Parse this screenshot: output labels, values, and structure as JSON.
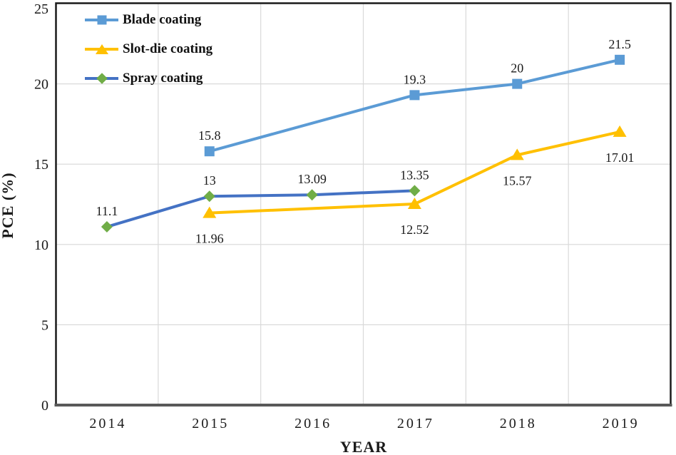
{
  "chart_data": {
    "type": "line",
    "title": "",
    "xlabel": "YEAR",
    "ylabel": "PCE (%)",
    "categories": [
      "2014",
      "2015",
      "2016",
      "2017",
      "2018",
      "2019"
    ],
    "ylim": [
      0,
      25
    ],
    "yticks": [
      0,
      5,
      10,
      15,
      20,
      25
    ],
    "grid": {
      "horizontal": true,
      "vertical_between_categories": true
    },
    "legend_position": "top-left-inside",
    "colors": {
      "gridline": "#D9D9D9",
      "frame": "#1a1a1a",
      "bottom_axis": "#595959",
      "text": "#1a1a1a"
    },
    "series": [
      {
        "name": "Blade coating",
        "color": "#5B9BD5",
        "marker": "square",
        "marker_color": "#5B9BD5",
        "label_position": "above",
        "points": [
          {
            "x": "2015",
            "y": 15.8,
            "label": "15.8"
          },
          {
            "x": "2017",
            "y": 19.3,
            "label": "19.3"
          },
          {
            "x": "2018",
            "y": 20,
            "label": "20"
          },
          {
            "x": "2019",
            "y": 21.5,
            "label": "21.5"
          }
        ]
      },
      {
        "name": "Slot-die coating",
        "color": "#FFC000",
        "marker": "triangle",
        "marker_color": "#FFC000",
        "label_position": "below",
        "points": [
          {
            "x": "2015",
            "y": 11.96,
            "label": "11.96"
          },
          {
            "x": "2017",
            "y": 12.52,
            "label": "12.52"
          },
          {
            "x": "2018",
            "y": 15.57,
            "label": "15.57"
          },
          {
            "x": "2019",
            "y": 17.01,
            "label": "17.01"
          }
        ]
      },
      {
        "name": "Spray coating",
        "color": "#4472C4",
        "marker": "diamond",
        "marker_color": "#70AD47",
        "label_position": "above",
        "points": [
          {
            "x": "2014",
            "y": 11.1,
            "label": "11.1"
          },
          {
            "x": "2015",
            "y": 13,
            "label": "13"
          },
          {
            "x": "2016",
            "y": 13.09,
            "label": "13.09"
          },
          {
            "x": "2017",
            "y": 13.35,
            "label": "13.35"
          }
        ]
      }
    ]
  }
}
